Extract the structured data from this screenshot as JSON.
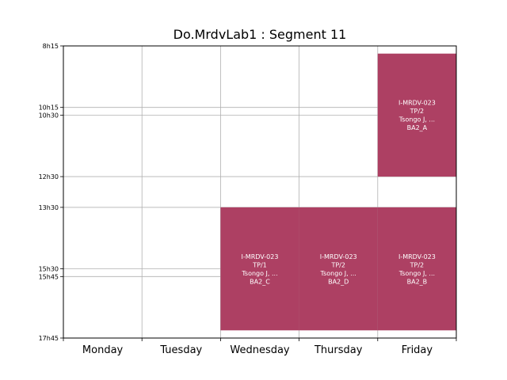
{
  "chart_data": {
    "type": "timetable",
    "title": "Do.MrdvLab1 : Segment 11",
    "days": [
      "Monday",
      "Tuesday",
      "Wednesday",
      "Thursday",
      "Friday"
    ],
    "y_ticks": [
      {
        "label": "8h15",
        "value": 8.25
      },
      {
        "label": "10h15",
        "value": 10.25
      },
      {
        "label": "10h30",
        "value": 10.5
      },
      {
        "label": "12h30",
        "value": 12.5
      },
      {
        "label": "13h30",
        "value": 13.5
      },
      {
        "label": "15h30",
        "value": 15.5
      },
      {
        "label": "15h45",
        "value": 15.75
      },
      {
        "label": "17h45",
        "value": 17.75
      }
    ],
    "ylim": [
      8.25,
      17.75
    ],
    "grid": true,
    "event_color": "#ad4063",
    "events": [
      {
        "day": 4,
        "start": 8.5,
        "end": 12.5,
        "lines": [
          "I-MRDV-023",
          "TP/2",
          "Tsongo J, ...",
          "BA2_A"
        ]
      },
      {
        "day": 2,
        "start": 13.5,
        "end": 17.5,
        "lines": [
          "I-MRDV-023",
          "TP/1",
          "Tsongo J, ...",
          "BA2_C"
        ]
      },
      {
        "day": 3,
        "start": 13.5,
        "end": 17.5,
        "lines": [
          "I-MRDV-023",
          "TP/2",
          "Tsongo J, ...",
          "BA2_D"
        ]
      },
      {
        "day": 4,
        "start": 13.5,
        "end": 17.5,
        "lines": [
          "I-MRDV-023",
          "TP/2",
          "Tsongo J, ...",
          "BA2_B"
        ]
      }
    ]
  }
}
